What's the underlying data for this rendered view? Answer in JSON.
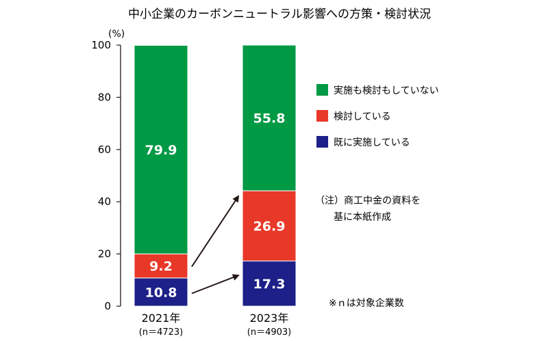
{
  "chart_data": {
    "type": "bar",
    "stacked": true,
    "title": "中小企業のカーボンニュートラル影響への方策・検討状況",
    "y_unit": "(%)",
    "ylim": [
      0,
      100
    ],
    "y_ticks": [
      0,
      20,
      40,
      60,
      80,
      100
    ],
    "categories": [
      "2021年",
      "2023年"
    ],
    "category_sublabels": [
      "(n＝4723)",
      "(n＝4903)"
    ],
    "series": [
      {
        "name": "既に実施している",
        "color": "#1d2088",
        "values": [
          10.8,
          17.3
        ]
      },
      {
        "name": "検討している",
        "color": "#e83828",
        "values": [
          9.2,
          26.9
        ]
      },
      {
        "name": "実施も検討もしていない",
        "color": "#009944",
        "values": [
          79.9,
          55.8
        ]
      }
    ],
    "value_labels": [
      [
        "10.8",
        "17.3"
      ],
      [
        "9.2",
        "26.9"
      ],
      [
        "79.9",
        "55.8"
      ]
    ],
    "legend_order": [
      "実施も検討もしていない",
      "検討している",
      "既に実施している"
    ],
    "legend_position": "right",
    "notes": {
      "source_line1": "（注）商工中金の資料を",
      "source_line2": "基に本紙作成",
      "n_note": "※ｎは対象企業数"
    },
    "annotations": "arrows from 2021 segments to 2023 segments"
  }
}
